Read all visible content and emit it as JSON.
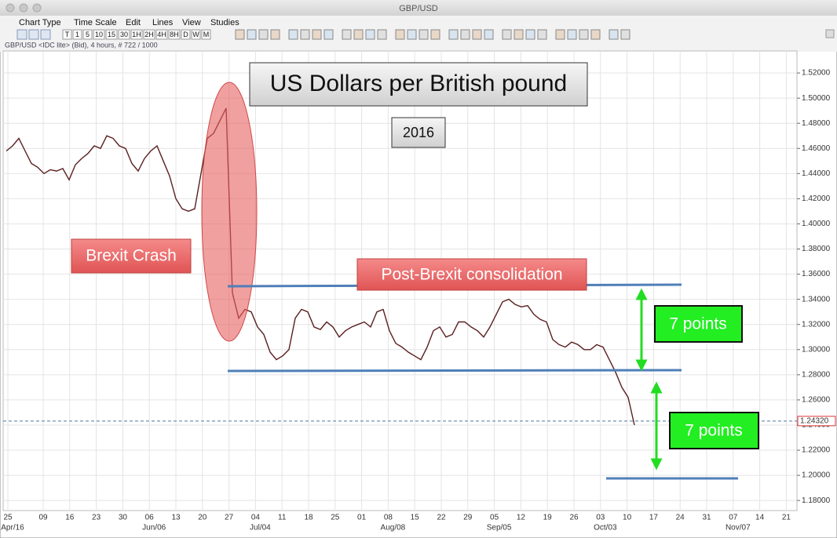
{
  "window_title": "GBP/USD",
  "menu": [
    "Chart Type",
    "Time Scale",
    "Edit",
    "Lines",
    "View",
    "Studies"
  ],
  "toolbar_buttons": [
    "T",
    "1",
    "5",
    "10",
    "15",
    "30",
    "1H",
    "2H",
    "4H",
    "8H",
    "D",
    "W",
    "M"
  ],
  "info_line": "GBP/USD <IDC lite> (Bid), 4 hours, # 722 / 1000",
  "chart_data": {
    "type": "line",
    "title": "US Dollars per British pound",
    "subtitle": "2016",
    "series": [
      {
        "name": "GBP/USD",
        "color": "#5a1f1f",
        "values": [
          1.458,
          1.462,
          1.468,
          1.458,
          1.448,
          1.445,
          1.44,
          1.443,
          1.442,
          1.444,
          1.435,
          1.447,
          1.452,
          1.456,
          1.462,
          1.46,
          1.47,
          1.468,
          1.462,
          1.46,
          1.448,
          1.442,
          1.452,
          1.458,
          1.462,
          1.45,
          1.438,
          1.42,
          1.412,
          1.41,
          1.412,
          1.44,
          1.468,
          1.472,
          1.482,
          1.492,
          1.345,
          1.325,
          1.332,
          1.33,
          1.318,
          1.312,
          1.298,
          1.292,
          1.295,
          1.3,
          1.325,
          1.332,
          1.33,
          1.318,
          1.316,
          1.322,
          1.318,
          1.31,
          1.315,
          1.318,
          1.32,
          1.322,
          1.318,
          1.33,
          1.332,
          1.315,
          1.305,
          1.302,
          1.298,
          1.295,
          1.292,
          1.302,
          1.315,
          1.318,
          1.31,
          1.312,
          1.322,
          1.322,
          1.318,
          1.315,
          1.31,
          1.318,
          1.328,
          1.338,
          1.34,
          1.336,
          1.334,
          1.335,
          1.328,
          1.324,
          1.322,
          1.308,
          1.304,
          1.302,
          1.306,
          1.304,
          1.3,
          1.3,
          1.304,
          1.302,
          1.292,
          1.282,
          1.27,
          1.262,
          1.24
        ]
      }
    ],
    "ylim": [
      1.172,
      1.5375
    ],
    "yticks": [
      {
        "value": 1.18,
        "label": "1.18000"
      },
      {
        "value": 1.2,
        "label": "1.20000"
      },
      {
        "value": 1.22,
        "label": "1.22000"
      },
      {
        "value": 1.24,
        "label": "1.24000"
      },
      {
        "value": 1.26,
        "label": "1.26000"
      },
      {
        "value": 1.28,
        "label": "1.28000"
      },
      {
        "value": 1.3,
        "label": "1.30000"
      },
      {
        "value": 1.32,
        "label": "1.32000"
      },
      {
        "value": 1.34,
        "label": "1.34000"
      },
      {
        "value": 1.36,
        "label": "1.36000"
      },
      {
        "value": 1.38,
        "label": "1.38000"
      },
      {
        "value": 1.4,
        "label": "1.40000"
      },
      {
        "value": 1.42,
        "label": "1.42000"
      },
      {
        "value": 1.44,
        "label": "1.44000"
      },
      {
        "value": 1.46,
        "label": "1.46000"
      },
      {
        "value": 1.48,
        "label": "1.48000"
      },
      {
        "value": 1.5,
        "label": "1.50000"
      },
      {
        "value": 1.52,
        "label": "1.52000"
      }
    ],
    "grid": true,
    "last_price": {
      "value": 1.2432,
      "label": "1.24320"
    },
    "x_tick_labels": [
      "25",
      "09",
      "16",
      "23",
      "30",
      "06",
      "13",
      "20",
      "27",
      "04",
      "11",
      "18",
      "25",
      "01",
      "08",
      "15",
      "22",
      "29",
      "05",
      "12",
      "19",
      "26",
      "03",
      "10",
      "17",
      "24",
      "31",
      "07",
      "14",
      "21"
    ],
    "x_month_labels": [
      "Apr/16",
      null,
      null,
      null,
      null,
      "Jun/06",
      null,
      null,
      null,
      "Jul/04",
      null,
      null,
      null,
      null,
      "Aug/08",
      null,
      null,
      null,
      "Sep/05",
      null,
      null,
      null,
      "Oct/03",
      null,
      null,
      null,
      null,
      "Nov/07",
      null,
      null
    ],
    "annotations": [
      "Brexit Crash",
      "Post-Brexit consolidation",
      "7 points",
      "7 points"
    ]
  }
}
